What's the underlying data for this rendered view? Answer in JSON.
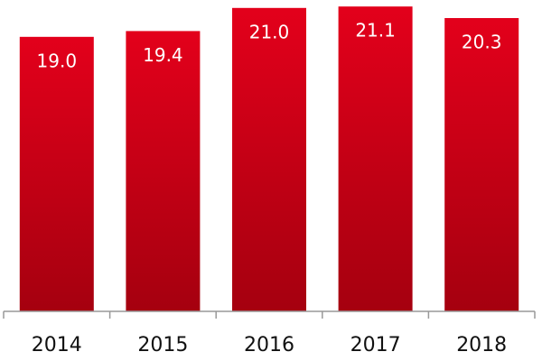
{
  "chart_data": {
    "type": "bar",
    "categories": [
      "2014",
      "2015",
      "2016",
      "2017",
      "2018"
    ],
    "values": [
      19.0,
      19.4,
      21.0,
      21.1,
      20.3
    ],
    "value_labels": [
      "19.0",
      "19.4",
      "21.0",
      "21.1",
      "20.3"
    ],
    "color": "#e3001b",
    "ylim": [
      0,
      21.3
    ]
  }
}
